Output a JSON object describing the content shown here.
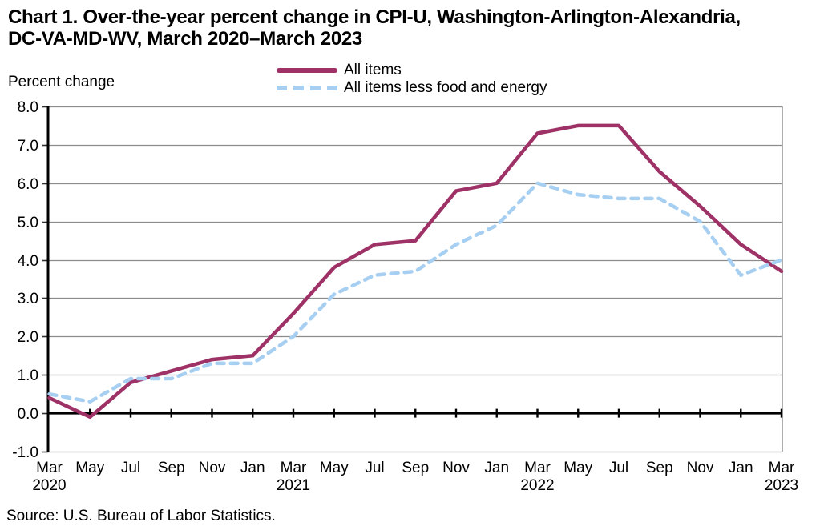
{
  "title": {
    "line1": "Chart 1. Over-the-year percent change in CPI-U, Washington-Arlington-Alexandria,",
    "line2": "DC-VA-MD-WV, March 2020–March 2023"
  },
  "axis_note": "Percent change",
  "source": "Source: U.S. Bureau of Labor Statistics.",
  "legend": [
    {
      "label": "All items"
    },
    {
      "label": "All items less food and energy"
    }
  ],
  "colors": {
    "all_items": "#9e3266",
    "core": "#a6cff2",
    "gridline": "#8c8c8c",
    "axis": "#000000"
  },
  "chart_data": {
    "type": "line",
    "title": "Chart 1. Over-the-year percent change in CPI-U, Washington-Arlington-Alexandria, DC-VA-MD-WV, March 2020–March 2023",
    "ylabel": "Percent change",
    "ylim": [
      -1.0,
      8.0
    ],
    "grid": true,
    "legend_position": "top",
    "y_tick_labels": [
      "8.0",
      "7.0",
      "6.0",
      "5.0",
      "4.0",
      "3.0",
      "2.0",
      "1.0",
      "0.0",
      "-1.0"
    ],
    "categories": [
      "Mar 2020",
      "May 2020",
      "Jul 2020",
      "Sep 2020",
      "Nov 2020",
      "Jan 2021",
      "Mar 2021",
      "May 2021",
      "Jul 2021",
      "Sep 2021",
      "Nov 2021",
      "Jan 2022",
      "Mar 2022",
      "May 2022",
      "Jul 2022",
      "Sep 2022",
      "Nov 2022",
      "Jan 2023",
      "Mar 2023"
    ],
    "x_month_labels": [
      "Mar",
      "May",
      "Jul",
      "Sep",
      "Nov",
      "Jan",
      "Mar",
      "May",
      "Jul",
      "Sep",
      "Nov",
      "Jan",
      "Mar",
      "May",
      "Jul",
      "Sep",
      "Nov",
      "Jan",
      "Mar"
    ],
    "x_year_labels": {
      "0": "2020",
      "6": "2021",
      "12": "2022",
      "18": "2023"
    },
    "series": [
      {
        "name": "All items",
        "color": "#9e3266",
        "style": "solid",
        "values": [
          0.4,
          -0.1,
          0.8,
          1.1,
          1.4,
          1.5,
          2.6,
          3.8,
          4.4,
          4.5,
          5.8,
          6.0,
          7.3,
          7.5,
          7.5,
          6.3,
          5.4,
          4.4,
          3.7
        ]
      },
      {
        "name": "All items less food and energy",
        "color": "#a6cff2",
        "style": "dashed",
        "values": [
          0.5,
          0.3,
          0.9,
          0.9,
          1.3,
          1.3,
          2.0,
          3.1,
          3.6,
          3.7,
          4.4,
          4.9,
          6.0,
          5.7,
          5.6,
          5.6,
          5.0,
          3.6,
          4.0
        ]
      }
    ]
  }
}
